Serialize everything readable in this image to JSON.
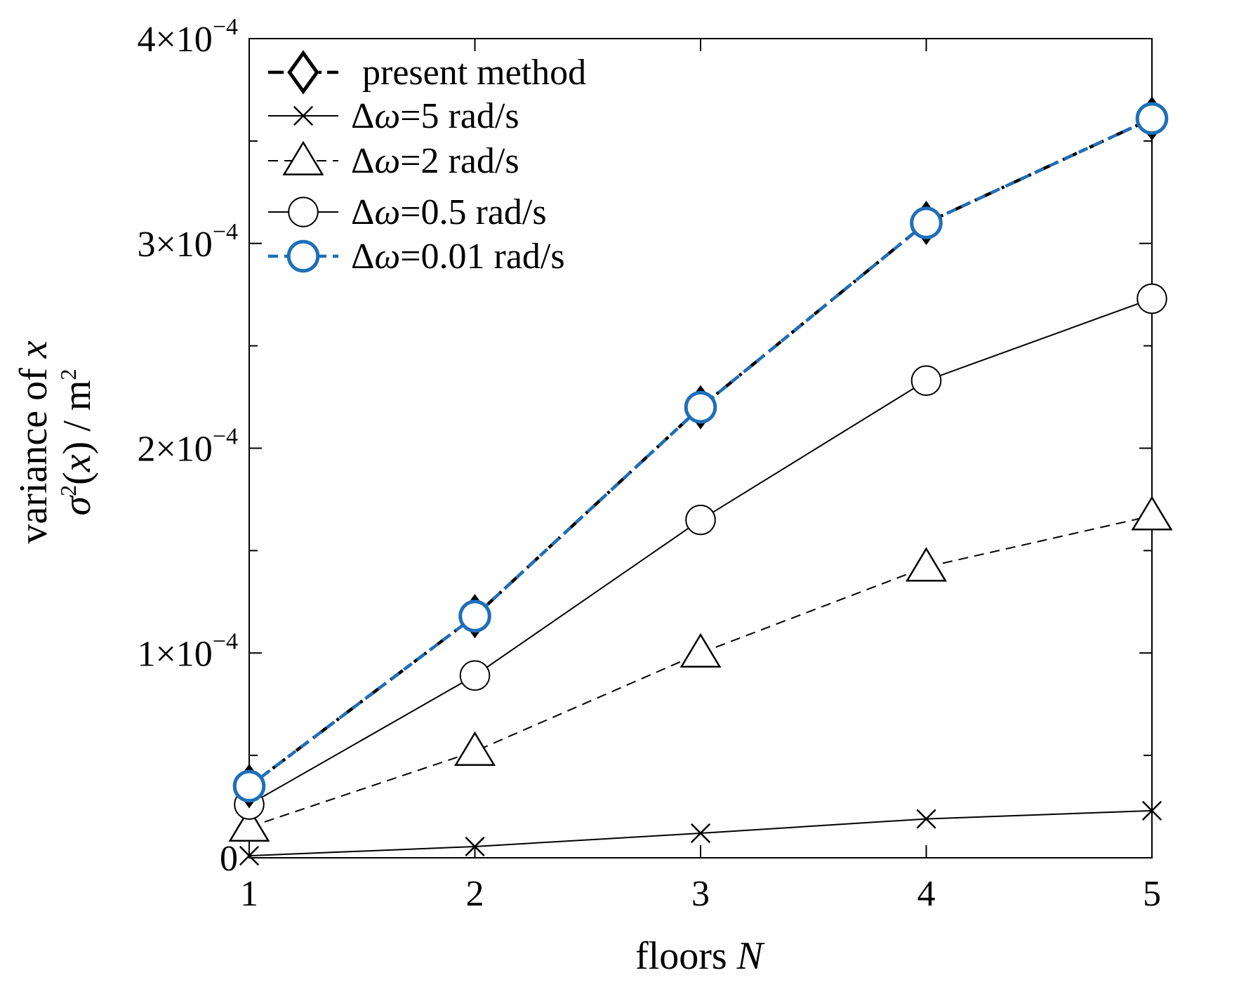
{
  "chart_data": {
    "type": "line",
    "title": "",
    "xlabel": {
      "prefix": "floors ",
      "var": "N"
    },
    "ylabel": {
      "line1_text": "variance of ",
      "line1_var": "x",
      "line2_sigma": "σ",
      "line2_sup": "2",
      "line2_open": "(",
      "line2_var": "x",
      "line2_close": ")",
      "line2_unit": " / m",
      "line2_unit_sup": "2"
    },
    "x": [
      1,
      2,
      3,
      4,
      5
    ],
    "xlim": [
      1,
      5
    ],
    "ylim": [
      0,
      0.0004
    ],
    "xticks": [
      "1",
      "2",
      "3",
      "4",
      "5"
    ],
    "yticks": [
      {
        "value": 0,
        "mantissa": "0",
        "exponent": ""
      },
      {
        "value": 0.0001,
        "mantissa": "1×10",
        "exponent": "−4"
      },
      {
        "value": 0.0002,
        "mantissa": "2×10",
        "exponent": "−4"
      },
      {
        "value": 0.0003,
        "mantissa": "3×10",
        "exponent": "−4"
      },
      {
        "value": 0.0004,
        "mantissa": "4×10",
        "exponent": "−4"
      }
    ],
    "grid": false,
    "legend_position": "top-left",
    "series": [
      {
        "name": "present method",
        "marker": "diamond",
        "line_style": "dash-dot",
        "color": "#000000",
        "values": [
          3.5e-05,
          0.000118,
          0.00022,
          0.00031,
          0.000361
        ]
      },
      {
        "name": "Δω=5 rad/s",
        "marker": "x",
        "line_style": "solid",
        "color": "#000000",
        "values": [
          1e-06,
          5.5e-06,
          1.2e-05,
          1.9e-05,
          2.3e-05
        ]
      },
      {
        "name": "Δω=2 rad/s",
        "marker": "triangle",
        "line_style": "dashed",
        "color": "#000000",
        "values": [
          1.5e-05,
          5.2e-05,
          0.0001,
          0.000142,
          0.000167
        ]
      },
      {
        "name": "Δω=0.5 rad/s",
        "marker": "circle",
        "line_style": "solid",
        "color": "#000000",
        "values": [
          2.6e-05,
          8.9e-05,
          0.000165,
          0.000233,
          0.000273
        ]
      },
      {
        "name": "Δω=0.01 rad/s",
        "marker": "circle",
        "line_style": "dashed",
        "color": "#1f6fb8",
        "values": [
          3.5e-05,
          0.000118,
          0.00022,
          0.00031,
          0.000361
        ]
      }
    ]
  }
}
